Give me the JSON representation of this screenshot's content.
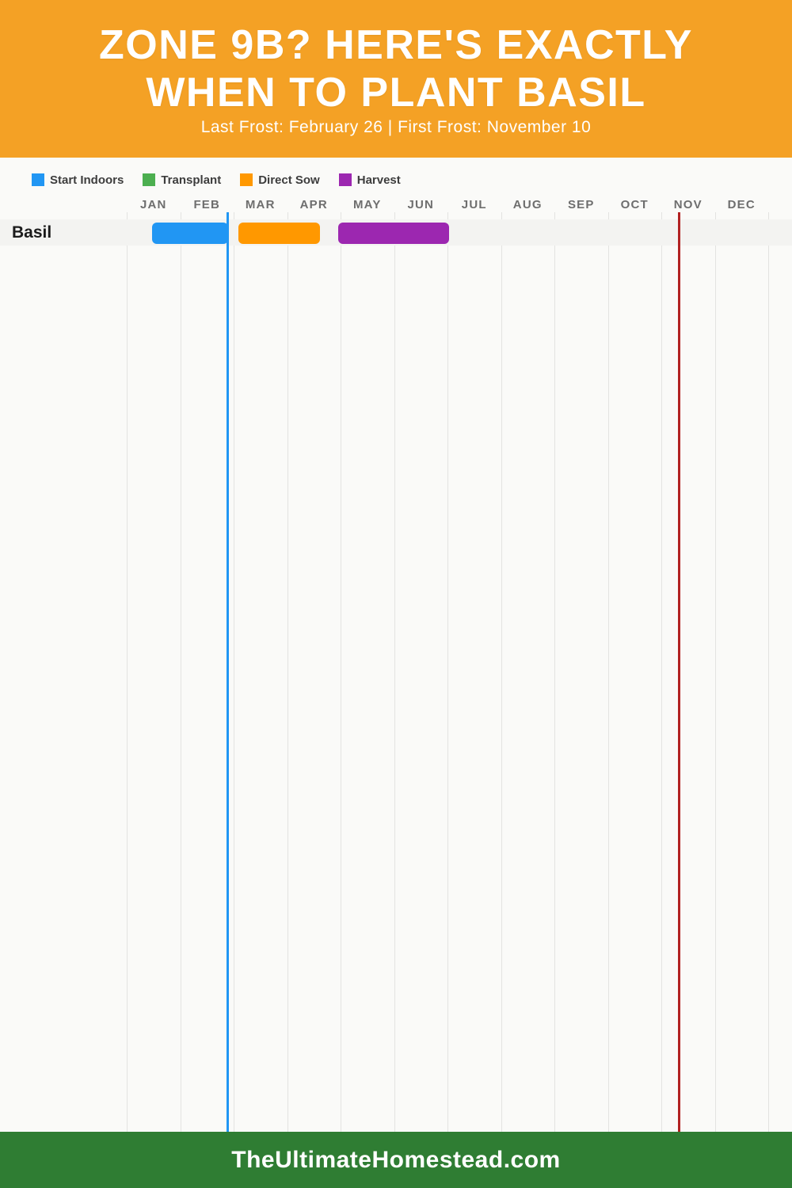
{
  "header": {
    "title_line1": "ZONE 9B? HERE'S EXACTLY",
    "title_line2": "WHEN TO PLANT BASIL",
    "subtitle": "Last Frost: February 26 | First Frost: November 10"
  },
  "legend": {
    "items": [
      {
        "label": "Start Indoors",
        "color": "#2196F3"
      },
      {
        "label": "Transplant",
        "color": "#4CAF50"
      },
      {
        "label": "Direct Sow",
        "color": "#FF9800"
      },
      {
        "label": "Harvest",
        "color": "#9C27B0"
      }
    ]
  },
  "chart_data": {
    "type": "gantt",
    "title": "Zone 9b basil planting calendar",
    "months": [
      "JAN",
      "FEB",
      "MAR",
      "APR",
      "MAY",
      "JUN",
      "JUL",
      "AUG",
      "SEP",
      "OCT",
      "NOV",
      "DEC"
    ],
    "x_axis_unit": "months, 0 = Jan 1, 12 = Dec 31",
    "grid": true,
    "rows": [
      {
        "label": "Basil",
        "bars": [
          {
            "series": "Start Indoors",
            "color": "#2196F3",
            "start": 0.47,
            "end": 1.89,
            "start_date": "Jan 15",
            "end_date": "Feb 26"
          },
          {
            "series": "Direct Sow",
            "color": "#FF9800",
            "start": 2.09,
            "end": 3.61,
            "start_date": "Mar 4",
            "end_date": "Apr 18"
          },
          {
            "series": "Harvest",
            "color": "#9C27B0",
            "start": 3.95,
            "end": 6.03,
            "start_date": "May 1",
            "end_date": "Jun 30"
          }
        ]
      }
    ],
    "markers": [
      {
        "name": "last-frost",
        "label": "Last Frost: February 26",
        "color": "#2196F3",
        "pos": 1.89
      },
      {
        "name": "first-frost",
        "label": "First Frost: November 10",
        "color": "#B22222",
        "pos": 10.33
      }
    ]
  },
  "footer": {
    "site": "TheUltimateHomestead.com"
  },
  "colors": {
    "header_bg": "#F4A125",
    "footer_bg": "#2F7D33",
    "page_bg": "#FAFAF8",
    "row_band": "#F3F3F1",
    "gridline": "#E3E3E1",
    "title_text": "#FFFFFF",
    "month_label_text": "#6E6E6E",
    "legend_text": "#3D3D3D",
    "row_label_text": "#1C1C1C"
  }
}
